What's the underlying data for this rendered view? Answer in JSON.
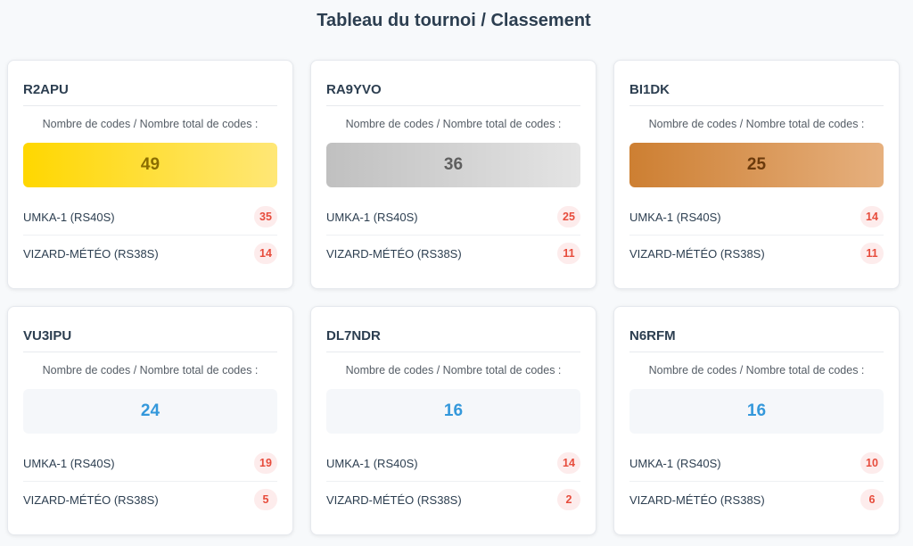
{
  "page": {
    "title": "Tableau du tournoi / Classement"
  },
  "colors": {
    "gold": "#ffd700",
    "silver": "#c0c0c0",
    "bronze": "#cd7f32",
    "accent_blue": "#3498db",
    "badge_red": "#e74c3c"
  },
  "cards": [
    {
      "callsign": "R2APU",
      "codes_label": "Nombre de codes / Nombre total de codes :",
      "total": "49",
      "medal": "gold",
      "rows": [
        {
          "label": "UMKA-1 (RS40S)",
          "count": "35"
        },
        {
          "label": "VIZARD-MÉTÉO (RS38S)",
          "count": "14"
        }
      ]
    },
    {
      "callsign": "RA9YVO",
      "codes_label": "Nombre de codes / Nombre total de codes :",
      "total": "36",
      "medal": "silver",
      "rows": [
        {
          "label": "UMKA-1 (RS40S)",
          "count": "25"
        },
        {
          "label": "VIZARD-MÉTÉO (RS38S)",
          "count": "11"
        }
      ]
    },
    {
      "callsign": "BI1DK",
      "codes_label": "Nombre de codes / Nombre total de codes :",
      "total": "25",
      "medal": "bronze",
      "rows": [
        {
          "label": "UMKA-1 (RS40S)",
          "count": "14"
        },
        {
          "label": "VIZARD-MÉTÉO (RS38S)",
          "count": "11"
        }
      ]
    },
    {
      "callsign": "VU3IPU",
      "codes_label": "Nombre de codes / Nombre total de codes :",
      "total": "24",
      "medal": "none",
      "rows": [
        {
          "label": "UMKA-1 (RS40S)",
          "count": "19"
        },
        {
          "label": "VIZARD-MÉTÉO (RS38S)",
          "count": "5"
        }
      ]
    },
    {
      "callsign": "DL7NDR",
      "codes_label": "Nombre de codes / Nombre total de codes :",
      "total": "16",
      "medal": "none",
      "rows": [
        {
          "label": "UMKA-1 (RS40S)",
          "count": "14"
        },
        {
          "label": "VIZARD-MÉTÉO (RS38S)",
          "count": "2"
        }
      ]
    },
    {
      "callsign": "N6RFM",
      "codes_label": "Nombre de codes / Nombre total de codes :",
      "total": "16",
      "medal": "none",
      "rows": [
        {
          "label": "UMKA-1 (RS40S)",
          "count": "10"
        },
        {
          "label": "VIZARD-MÉTÉO (RS38S)",
          "count": "6"
        }
      ]
    }
  ]
}
